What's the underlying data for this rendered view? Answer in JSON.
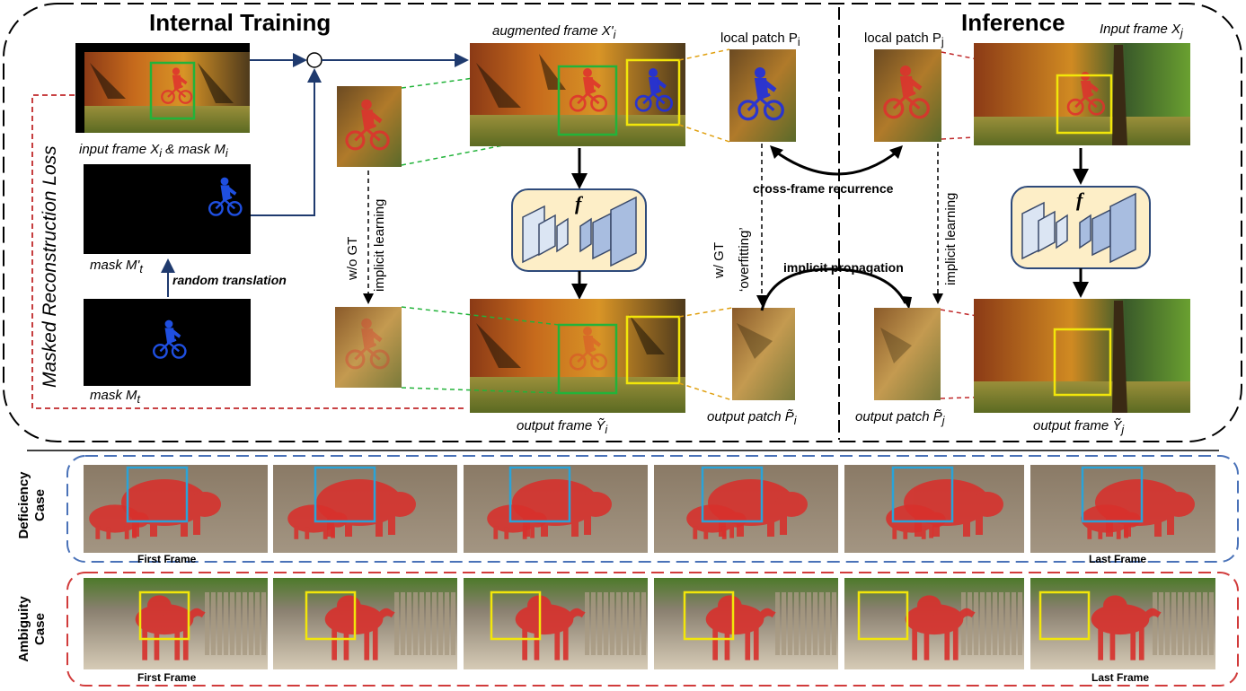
{
  "top": {
    "internal_training_title": "Internal Training",
    "inference_title": "Inference",
    "loss_vertical": "Masked  Reconstruction  Loss"
  },
  "labels": {
    "input_frame_mask": "input frame X",
    "input_frame_mask_sub_i": "i",
    "input_frame_mask_amp": " & mask  M",
    "mask_m_prime": "mask  M'",
    "mask_m_prime_sub": "t",
    "mask_m": "mask   M",
    "mask_m_sub": "t",
    "random_translation": "random translation",
    "augmented_frame": "augmented  frame   X'",
    "augmented_sub": "i",
    "local_patch_pi": "local patch P",
    "local_patch_pi_sub": "i",
    "local_patch_pj": "local patch P",
    "local_patch_pj_sub": "j",
    "input_frame_xj": "Input frame X",
    "input_frame_xj_sub": "j",
    "wo_gt": "w/o  GT",
    "implicit_learning_left": "implicit learning",
    "w_gt": "w/  GT",
    "overfitting": "‘overfitting’",
    "implicit_learning_right": "implicit learning",
    "cross_frame": "cross-frame  recurrence",
    "implicit_propagation": "implicit  propagation",
    "output_frame_yi": "output  frame Ỹ",
    "output_frame_yi_sub": "i",
    "output_patch_pi": "output patch P̃",
    "output_patch_pi_sub": "i",
    "output_patch_pj": "output patch P̃",
    "output_patch_pj_sub": "j",
    "output_frame_yj": "output frame Ỹ",
    "output_frame_yj_sub": "j",
    "f_symbol": "f"
  },
  "bottom": {
    "deficiency_case_line1": "Deficiency",
    "deficiency_case_line2": "Case",
    "ambiguity_case_line1": "Ambiguity",
    "ambiguity_case_line2": "Case",
    "first_frame": "First Frame",
    "last_frame": "Last Frame"
  },
  "colors": {
    "green_box": "#22b33a",
    "yellow_box": "#f2e60a",
    "blue_box": "#2aa3d8",
    "red_dash": "#c0282a",
    "blue_dash_border": "#4a72b8",
    "red_dash_border": "#d13b3b",
    "navy_arrow": "#1f3a6e",
    "model_fill": "#fdeec7",
    "model_border": "#2e4a7a",
    "overlay_red": "#e0302e",
    "overlay_blue": "#1f2fe0"
  }
}
